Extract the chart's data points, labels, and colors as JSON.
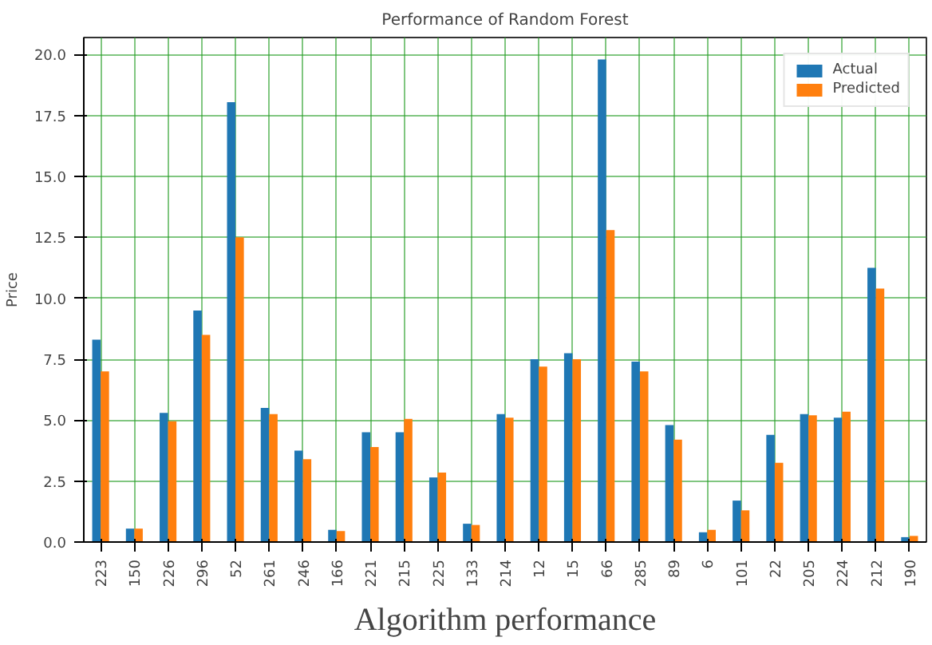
{
  "chart_data": {
    "type": "bar",
    "title": "Performance of Random Forest",
    "ylabel": "Price",
    "annotations": [
      "Algorithm performance"
    ],
    "categories": [
      "223",
      "150",
      "226",
      "296",
      "52",
      "261",
      "246",
      "166",
      "221",
      "215",
      "225",
      "133",
      "214",
      "12",
      "15",
      "66",
      "285",
      "89",
      "6",
      "101",
      "22",
      "205",
      "224",
      "212",
      "190"
    ],
    "series": [
      {
        "name": "Actual",
        "color": "#1f77b4",
        "values": [
          8.3,
          0.55,
          5.3,
          9.5,
          18.05,
          5.5,
          3.75,
          0.5,
          4.5,
          4.5,
          2.65,
          0.75,
          5.25,
          7.5,
          7.75,
          19.8,
          7.4,
          4.8,
          0.4,
          1.7,
          4.4,
          5.25,
          5.1,
          11.25,
          0.2
        ]
      },
      {
        "name": "Predicted",
        "color": "#ff7f0e",
        "values": [
          7.0,
          0.55,
          4.95,
          8.5,
          12.5,
          5.25,
          3.4,
          0.45,
          3.9,
          5.05,
          2.85,
          0.7,
          5.1,
          7.2,
          7.5,
          12.8,
          7.0,
          4.2,
          0.5,
          1.3,
          3.25,
          5.2,
          5.35,
          10.4,
          0.25
        ]
      }
    ],
    "ylim": [
      0,
      20.7
    ],
    "yticks": [
      {
        "value": 0,
        "label": "0.0"
      },
      {
        "value": 2.5,
        "label": "2.5"
      },
      {
        "value": 5,
        "label": "5.0"
      },
      {
        "value": 7.5,
        "label": "7.5"
      },
      {
        "value": 10,
        "label": "10.0"
      },
      {
        "value": 12.5,
        "label": "12.5"
      },
      {
        "value": 15,
        "label": "15.0"
      },
      {
        "value": 17.5,
        "label": "17.5"
      },
      {
        "value": 20,
        "label": "20.0"
      }
    ],
    "grid": true,
    "legend": "top right"
  }
}
